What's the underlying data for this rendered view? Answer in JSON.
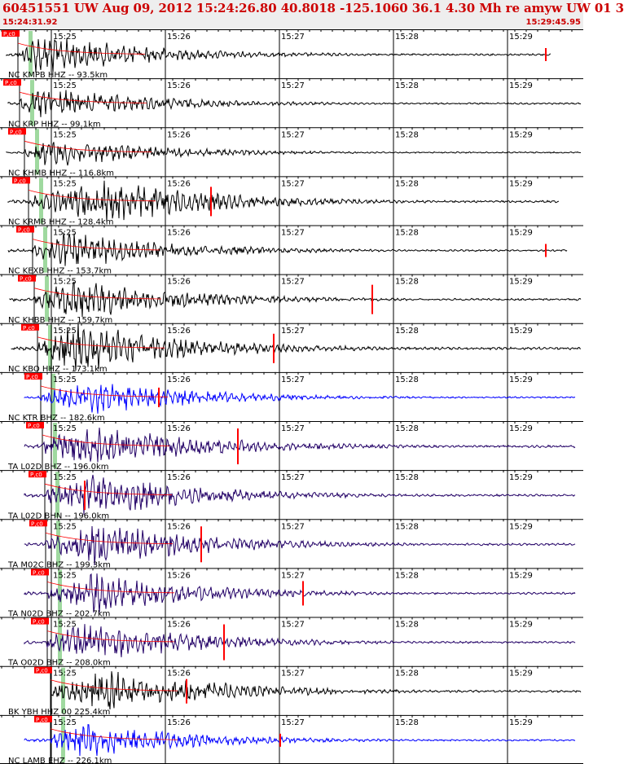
{
  "header": {
    "title": "60451551 UW Aug 09, 2012 15:24:26.80    40.8018 -125.1060 36.1 4.30 Mh re amyw UW 01   3",
    "time_start": "15:24:31.92",
    "time_end": "15:29:45.95"
  },
  "pick_label": "P,c0",
  "time_labels": [
    "15:25",
    "15:26",
    "15:27",
    "15:28",
    "15:29"
  ],
  "colors": {
    "trace_black": "#000000",
    "trace_blue": "#0000ff",
    "trace_purple": "#220066",
    "pick_red": "#ff0000",
    "window_green": "#9fd99f"
  },
  "traces": [
    {
      "label": "NC KMPB HHZ -- 93.5km",
      "color": "black"
    },
    {
      "label": "NC KRP HHZ -- 99.1km",
      "color": "black"
    },
    {
      "label": "NC KHMB HHZ -- 116.8km",
      "color": "black"
    },
    {
      "label": "NC KRMB HHZ -- 128.4km",
      "color": "black"
    },
    {
      "label": "NC KEXB HHZ -- 153.7km",
      "color": "black"
    },
    {
      "label": "NC KHBB HHZ -- 159.7km",
      "color": "black"
    },
    {
      "label": "NC KBO HHZ -- 173.1km",
      "color": "black"
    },
    {
      "label": "NC KTR BHZ -- 182.6km",
      "color": "blue"
    },
    {
      "label": "TA L02D BHZ -- 196.0km",
      "color": "purple"
    },
    {
      "label": "TA L02D BHN -- 196.0km",
      "color": "purple"
    },
    {
      "label": "TA M02C BHZ -- 199.3km",
      "color": "purple"
    },
    {
      "label": "TA N02D BHZ -- 202.7km",
      "color": "purple"
    },
    {
      "label": "TA O02D BHZ -- 208.0km",
      "color": "purple"
    },
    {
      "label": "BK YBH HHZ 00 225.4km",
      "color": "black"
    },
    {
      "label": "NC LAMB EHZ -- 226.1km",
      "color": "blue"
    }
  ]
}
